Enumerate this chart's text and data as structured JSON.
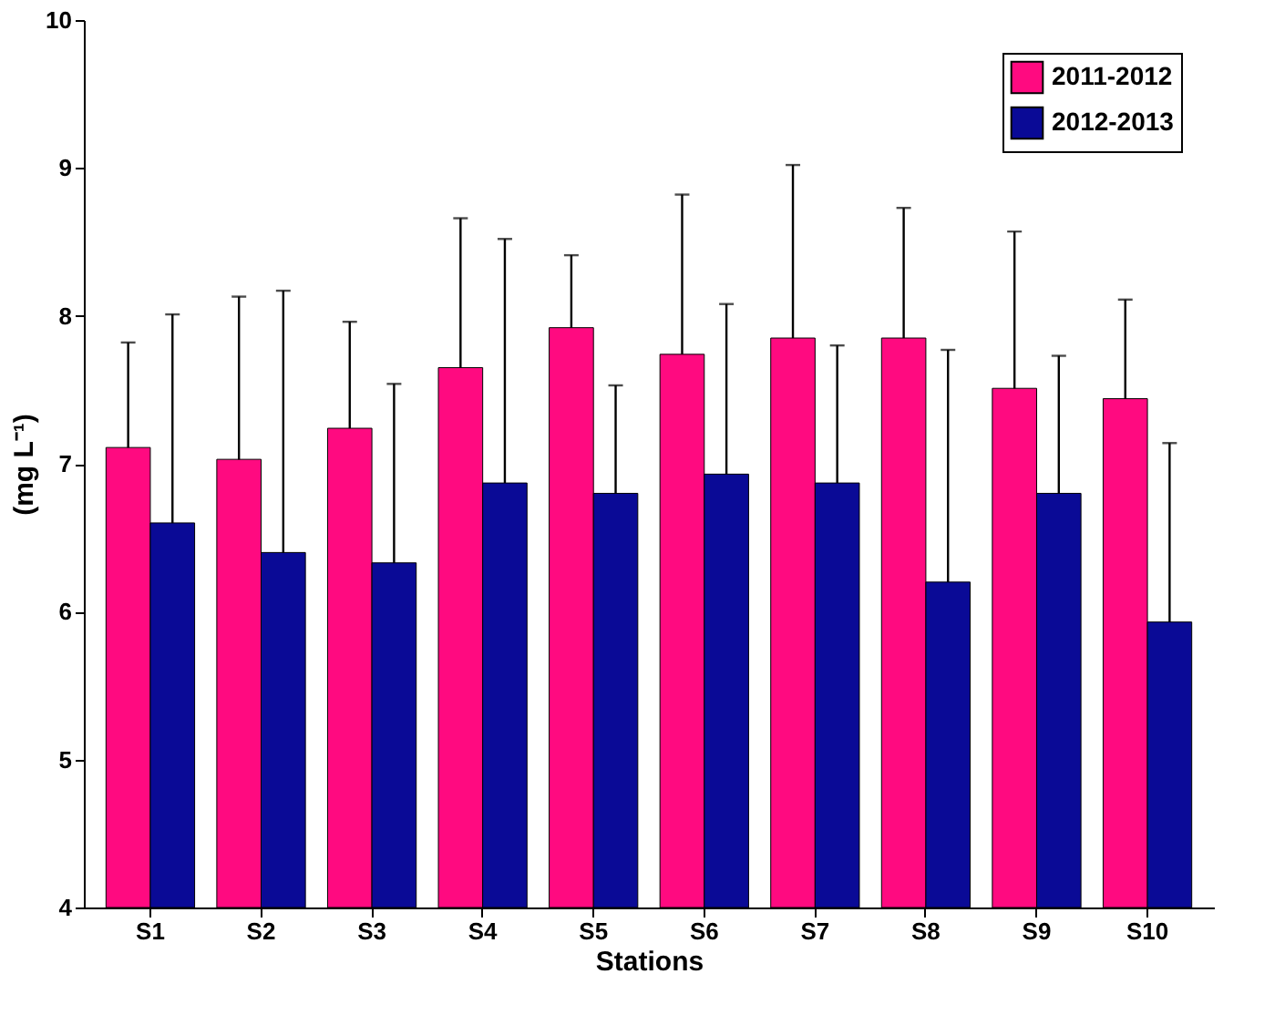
{
  "chart_data": {
    "type": "bar",
    "xlabel": "Stations",
    "ylabel": "(mg L⁻¹)",
    "categories": [
      "S1",
      "S2",
      "S3",
      "S4",
      "S5",
      "S6",
      "S7",
      "S8",
      "S9",
      "S10"
    ],
    "series": [
      {
        "name": "2011-2012",
        "color": "#ff0a80",
        "values": [
          7.11,
          7.03,
          7.24,
          7.65,
          7.92,
          7.74,
          7.85,
          7.85,
          7.51,
          7.44
        ],
        "errors": [
          0.71,
          1.1,
          0.72,
          1.01,
          0.49,
          1.08,
          1.17,
          0.88,
          1.06,
          0.67
        ]
      },
      {
        "name": "2012-2013",
        "color": "#0a0a96",
        "values": [
          6.6,
          6.4,
          6.33,
          6.87,
          6.8,
          6.93,
          6.87,
          6.2,
          6.8,
          5.93
        ],
        "errors": [
          1.41,
          1.77,
          1.21,
          1.65,
          0.73,
          1.15,
          0.93,
          1.57,
          0.93,
          1.21
        ]
      }
    ],
    "ylim": [
      4,
      10
    ],
    "yticks": [
      4,
      5,
      6,
      7,
      8,
      9,
      10
    ],
    "grid": false,
    "legend": "top right"
  }
}
